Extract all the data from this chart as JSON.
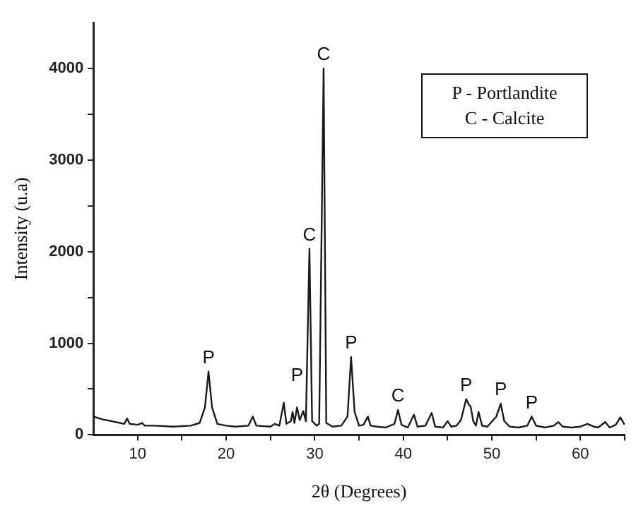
{
  "chart_data": {
    "type": "line",
    "xlabel": "2θ (Degrees)",
    "ylabel": "Intensity (u.a)",
    "xlim": [
      5,
      65
    ],
    "ylim": [
      0,
      4500
    ],
    "xticks": [
      10,
      {
        "value": 15,
        "label": null
      },
      20,
      {
        "value": 25,
        "label": null
      },
      30,
      {
        "value": 35,
        "label": null
      },
      40,
      {
        "value": 45,
        "label": null
      },
      50,
      {
        "value": 55,
        "label": null
      },
      60,
      {
        "value": 65,
        "label": null
      }
    ],
    "yticks": [
      0,
      {
        "value": 500,
        "label": null
      },
      1000,
      {
        "value": 1500,
        "label": null
      },
      2000,
      {
        "value": 2500,
        "label": null
      },
      3000,
      {
        "value": 3500,
        "label": null
      },
      4000
    ],
    "grid": false,
    "legend": false,
    "marker": "none",
    "line_style": "solid",
    "series": [
      {
        "color": "#1a1a1a",
        "x": [
          5,
          6,
          7,
          8,
          8.5,
          8.8,
          9.1,
          10,
          10.5,
          10.8,
          12,
          14,
          16,
          17,
          17.6,
          18,
          18.4,
          19,
          20,
          21,
          22.5,
          23,
          23.4,
          25,
          25.5,
          26,
          26.5,
          26.8,
          27.3,
          27.5,
          27.7,
          28,
          28.3,
          28.7,
          29,
          29.4,
          29.7,
          30.2,
          30.5,
          31,
          31.3,
          32,
          33,
          33.7,
          34.1,
          34.5,
          35,
          35.5,
          36,
          36.3,
          37,
          38,
          39,
          39.4,
          39.8,
          40.5,
          41.2,
          41.6,
          42.5,
          43.2,
          43.6,
          44.5,
          45,
          45.4,
          46,
          46.5,
          47.1,
          47.4,
          47.6,
          47.9,
          48.2,
          48.5,
          48.9,
          49.5,
          50.5,
          51,
          51.4,
          52,
          53,
          54,
          54.5,
          55,
          56,
          57,
          57.5,
          58,
          59,
          60,
          60.8,
          61.5,
          62,
          62.8,
          63.3,
          64,
          64.5,
          65
        ],
        "values": [
          200,
          170,
          150,
          130,
          120,
          180,
          120,
          110,
          130,
          100,
          100,
          90,
          100,
          130,
          300,
          690,
          300,
          120,
          100,
          90,
          100,
          200,
          100,
          90,
          120,
          100,
          350,
          120,
          150,
          250,
          130,
          300,
          160,
          260,
          150,
          2030,
          150,
          100,
          120,
          4000,
          130,
          90,
          100,
          200,
          850,
          250,
          100,
          110,
          200,
          100,
          90,
          80,
          120,
          270,
          110,
          80,
          220,
          90,
          100,
          240,
          90,
          80,
          150,
          90,
          100,
          160,
          390,
          330,
          310,
          150,
          100,
          250,
          100,
          90,
          200,
          340,
          150,
          90,
          80,
          100,
          200,
          100,
          80,
          100,
          140,
          90,
          80,
          90,
          120,
          90,
          80,
          140,
          80,
          110,
          190,
          110
        ]
      }
    ],
    "annotations": [
      {
        "text": "P",
        "x": 18,
        "y": 690
      },
      {
        "text": "P",
        "x": 28,
        "y": 300
      },
      {
        "text": "C",
        "x": 29.4,
        "y": 2030
      },
      {
        "text": "C",
        "x": 31,
        "y": 4000
      },
      {
        "text": "P",
        "x": 34.1,
        "y": 850
      },
      {
        "text": "C",
        "x": 39.4,
        "y": 270
      },
      {
        "text": "P",
        "x": 47.1,
        "y": 390
      },
      {
        "text": "P",
        "x": 51,
        "y": 340
      },
      {
        "text": "P",
        "x": 54.5,
        "y": 200
      },
      "P - Portlandite",
      "C - Calcite"
    ]
  }
}
